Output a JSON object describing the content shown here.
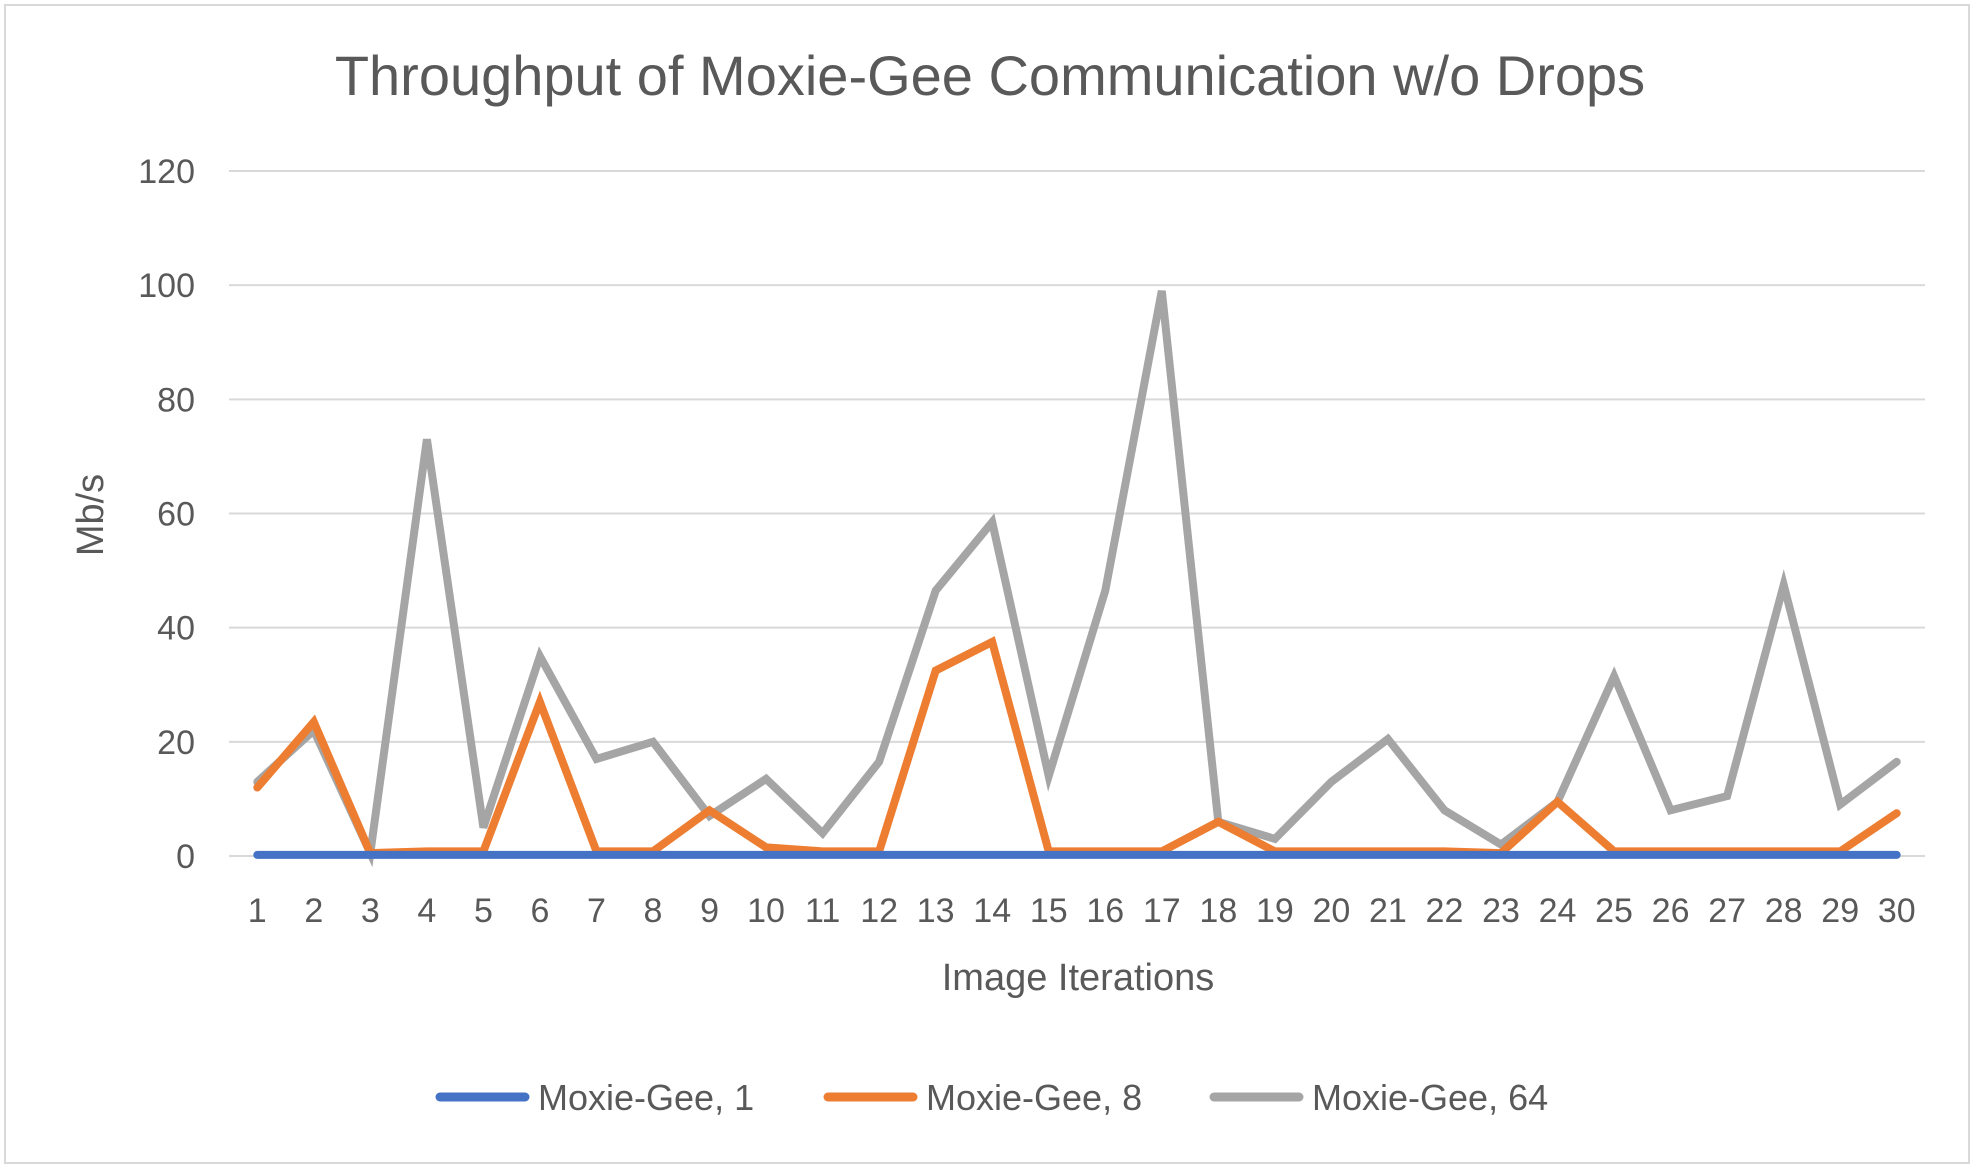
{
  "chart_data": {
    "type": "line",
    "title": "Throughput of Moxie-Gee Communication w/o Drops",
    "xlabel": "Image Iterations",
    "ylabel": "Mb/s",
    "ylim": [
      0,
      120
    ],
    "yticks": [
      0,
      20,
      40,
      60,
      80,
      100,
      120
    ],
    "categories": [
      "1",
      "2",
      "3",
      "4",
      "5",
      "6",
      "7",
      "8",
      "9",
      "10",
      "11",
      "12",
      "13",
      "14",
      "15",
      "16",
      "17",
      "18",
      "19",
      "20",
      "21",
      "22",
      "23",
      "24",
      "25",
      "26",
      "27",
      "28",
      "29",
      "30"
    ],
    "grid": true,
    "legend_position": "bottom",
    "series": [
      {
        "name": "Moxie-Gee, 1",
        "color": "#4472c4",
        "values": [
          0.2,
          0.2,
          0.2,
          0.2,
          0.2,
          0.2,
          0.2,
          0.2,
          0.2,
          0.2,
          0.2,
          0.2,
          0.2,
          0.2,
          0.2,
          0.2,
          0.2,
          0.2,
          0.2,
          0.2,
          0.2,
          0.2,
          0.2,
          0.2,
          0.2,
          0.2,
          0.2,
          0.2,
          0.2,
          0.2
        ]
      },
      {
        "name": "Moxie-Gee, 8",
        "color": "#ed7d31",
        "values": [
          12,
          23.5,
          0.5,
          0.8,
          0.8,
          27,
          0.8,
          0.8,
          8,
          1.5,
          0.8,
          0.8,
          32.5,
          37.5,
          0.8,
          0.8,
          0.8,
          6,
          0.8,
          0.8,
          0.8,
          0.8,
          0.5,
          9.5,
          0.8,
          0.8,
          0.8,
          0.8,
          0.8,
          7.5
        ]
      },
      {
        "name": "Moxie-Gee, 64",
        "color": "#a5a5a5",
        "values": [
          13,
          22,
          0.5,
          73,
          5,
          35,
          17,
          20,
          7,
          13.5,
          4,
          16.5,
          46.5,
          58.5,
          14,
          46.5,
          99,
          6,
          3,
          13,
          20.5,
          8,
          2,
          9.5,
          31.5,
          8,
          10.5,
          47.5,
          9,
          16.5
        ]
      }
    ]
  }
}
